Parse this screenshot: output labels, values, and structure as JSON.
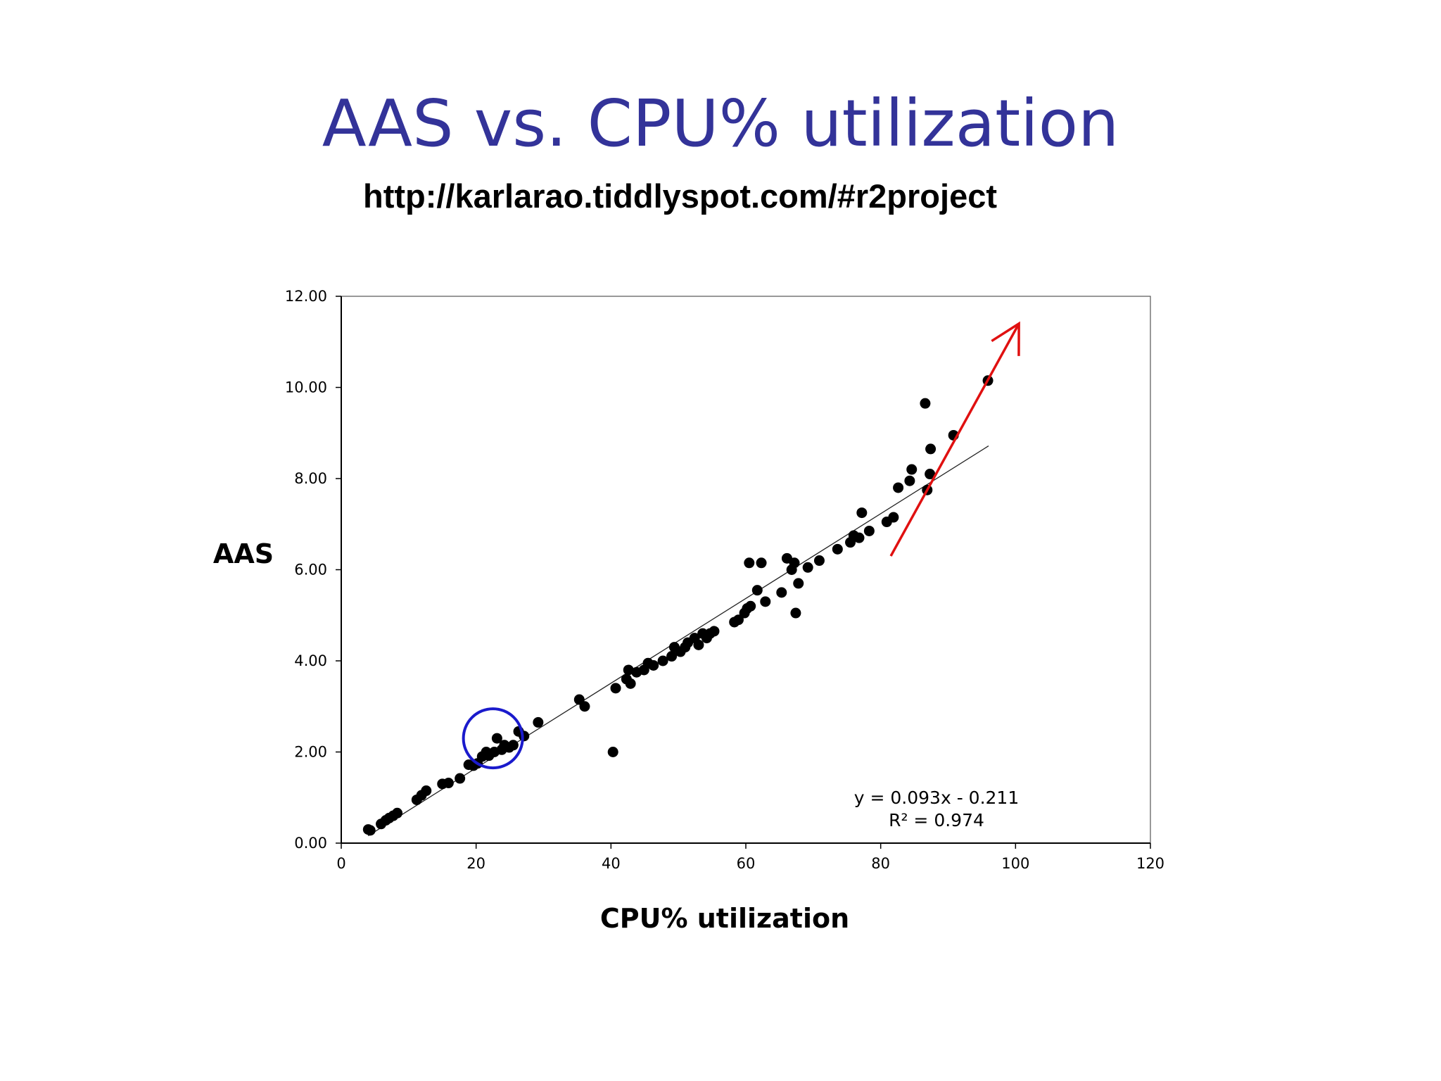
{
  "slide": {
    "title": "AAS vs. CPU% utilization",
    "subtitle": "http://karlarao.tiddlyspot.com/#r2project"
  },
  "colors": {
    "title": "#333399",
    "points": "#000000",
    "highlight_circle": "#1a1acc",
    "trend_arrow": "#e01010"
  },
  "chart_data": {
    "type": "scatter",
    "xlabel": "CPU% utilization",
    "ylabel": "AAS",
    "xlim": [
      0,
      120
    ],
    "ylim": [
      0,
      12
    ],
    "x_ticks": [
      "0",
      "20",
      "40",
      "60",
      "80",
      "100",
      "120"
    ],
    "y_ticks": [
      "0.00",
      "2.00",
      "4.00",
      "6.00",
      "8.00",
      "10.00",
      "12.00"
    ],
    "grid": false,
    "legend": "none",
    "trendline": {
      "type": "linear",
      "slope": 0.093,
      "intercept": -0.211,
      "x_range": [
        4,
        96
      ],
      "equation": "y = 0.093x - 0.211",
      "r_squared": "R² = 0.974"
    },
    "annotations": {
      "highlight_circle_center": [
        22.5,
        2.3
      ],
      "arrow_from": [
        81.5,
        6.3
      ],
      "arrow_to": [
        100.5,
        11.4
      ]
    },
    "points": [
      [
        4.0,
        0.3
      ],
      [
        4.3,
        0.28
      ],
      [
        5.9,
        0.42
      ],
      [
        6.6,
        0.5
      ],
      [
        7.1,
        0.55
      ],
      [
        7.7,
        0.6
      ],
      [
        8.3,
        0.66
      ],
      [
        11.2,
        0.95
      ],
      [
        11.9,
        1.05
      ],
      [
        12.6,
        1.15
      ],
      [
        15.0,
        1.3
      ],
      [
        15.9,
        1.32
      ],
      [
        17.6,
        1.42
      ],
      [
        18.9,
        1.72
      ],
      [
        19.6,
        1.7
      ],
      [
        20.2,
        1.75
      ],
      [
        20.9,
        1.9
      ],
      [
        21.5,
        2.0
      ],
      [
        21.9,
        1.92
      ],
      [
        22.7,
        2.0
      ],
      [
        23.1,
        2.3
      ],
      [
        23.8,
        2.05
      ],
      [
        24.2,
        2.15
      ],
      [
        24.9,
        2.1
      ],
      [
        25.5,
        2.15
      ],
      [
        26.3,
        2.45
      ],
      [
        27.1,
        2.35
      ],
      [
        29.2,
        2.65
      ],
      [
        35.3,
        3.15
      ],
      [
        36.1,
        3.0
      ],
      [
        40.3,
        2.0
      ],
      [
        40.7,
        3.4
      ],
      [
        42.3,
        3.6
      ],
      [
        42.6,
        3.8
      ],
      [
        42.9,
        3.5
      ],
      [
        43.8,
        3.75
      ],
      [
        44.9,
        3.8
      ],
      [
        45.5,
        3.95
      ],
      [
        46.3,
        3.9
      ],
      [
        47.7,
        4.0
      ],
      [
        49.0,
        4.1
      ],
      [
        49.4,
        4.3
      ],
      [
        50.3,
        4.2
      ],
      [
        51.0,
        4.3
      ],
      [
        51.4,
        4.4
      ],
      [
        52.4,
        4.5
      ],
      [
        53.0,
        4.35
      ],
      [
        53.6,
        4.6
      ],
      [
        54.2,
        4.5
      ],
      [
        54.7,
        4.6
      ],
      [
        55.3,
        4.65
      ],
      [
        58.3,
        4.85
      ],
      [
        58.9,
        4.9
      ],
      [
        59.8,
        5.05
      ],
      [
        60.2,
        5.15
      ],
      [
        60.7,
        5.2
      ],
      [
        60.5,
        6.15
      ],
      [
        61.7,
        5.55
      ],
      [
        62.3,
        6.15
      ],
      [
        62.9,
        5.3
      ],
      [
        65.3,
        5.5
      ],
      [
        66.1,
        6.25
      ],
      [
        66.8,
        6.0
      ],
      [
        67.2,
        6.15
      ],
      [
        67.8,
        5.7
      ],
      [
        67.4,
        5.05
      ],
      [
        69.2,
        6.05
      ],
      [
        70.9,
        6.2
      ],
      [
        73.6,
        6.45
      ],
      [
        75.5,
        6.6
      ],
      [
        76.0,
        6.75
      ],
      [
        76.8,
        6.7
      ],
      [
        77.2,
        7.25
      ],
      [
        78.3,
        6.85
      ],
      [
        80.9,
        7.05
      ],
      [
        81.9,
        7.15
      ],
      [
        82.6,
        7.8
      ],
      [
        84.3,
        7.95
      ],
      [
        84.6,
        8.2
      ],
      [
        86.6,
        9.65
      ],
      [
        86.9,
        7.75
      ],
      [
        87.3,
        8.1
      ],
      [
        87.4,
        8.65
      ],
      [
        90.8,
        8.95
      ],
      [
        95.9,
        10.15
      ]
    ]
  }
}
